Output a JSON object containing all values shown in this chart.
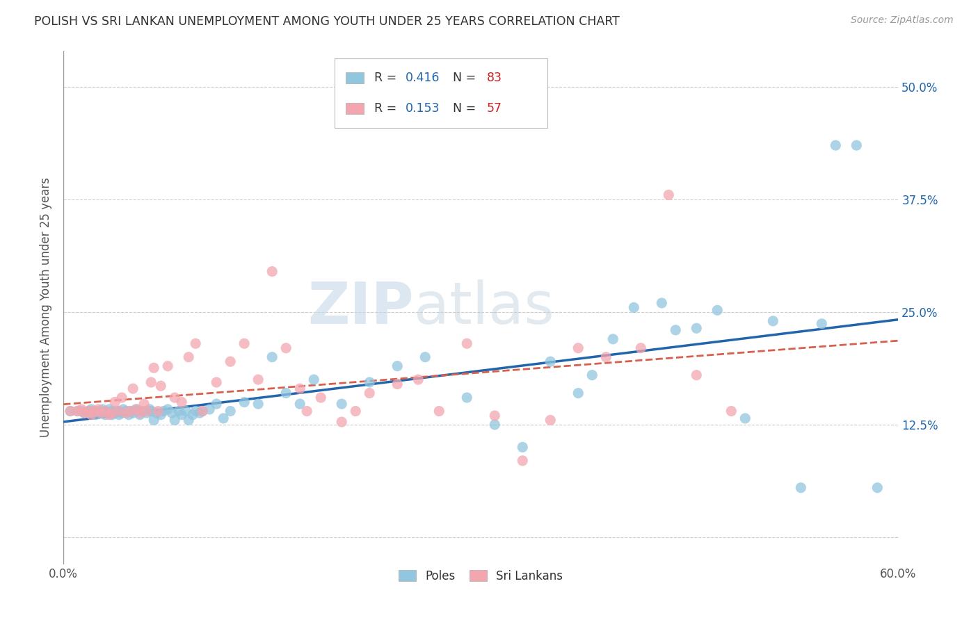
{
  "title": "POLISH VS SRI LANKAN UNEMPLOYMENT AMONG YOUTH UNDER 25 YEARS CORRELATION CHART",
  "source": "Source: ZipAtlas.com",
  "ylabel": "Unemployment Among Youth under 25 years",
  "xlim": [
    0.0,
    0.6
  ],
  "ylim": [
    -0.03,
    0.54
  ],
  "yticks": [
    0.0,
    0.125,
    0.25,
    0.375,
    0.5
  ],
  "ytick_labels": [
    "",
    "12.5%",
    "25.0%",
    "37.5%",
    "50.0%"
  ],
  "xticks": [
    0.0,
    0.1,
    0.2,
    0.3,
    0.4,
    0.5,
    0.6
  ],
  "xtick_labels": [
    "0.0%",
    "",
    "",
    "",
    "",
    "",
    "60.0%"
  ],
  "poles_R": 0.416,
  "poles_N": 83,
  "srilankans_R": 0.153,
  "srilankans_N": 57,
  "poles_color": "#92c5de",
  "srilankans_color": "#f4a6b0",
  "poles_line_color": "#2166ac",
  "srilankans_line_color": "#d6604d",
  "background_color": "#ffffff",
  "watermark_zip": "ZIP",
  "watermark_atlas": "atlas",
  "poles_x": [
    0.005,
    0.01,
    0.013,
    0.015,
    0.018,
    0.02,
    0.02,
    0.022,
    0.023,
    0.025,
    0.027,
    0.028,
    0.03,
    0.03,
    0.032,
    0.033,
    0.035,
    0.035,
    0.037,
    0.038,
    0.04,
    0.04,
    0.042,
    0.043,
    0.045,
    0.047,
    0.048,
    0.05,
    0.052,
    0.053,
    0.055,
    0.057,
    0.06,
    0.062,
    0.063,
    0.065,
    0.067,
    0.07,
    0.072,
    0.075,
    0.078,
    0.08,
    0.083,
    0.085,
    0.088,
    0.09,
    0.093,
    0.095,
    0.098,
    0.1,
    0.105,
    0.11,
    0.115,
    0.12,
    0.13,
    0.14,
    0.15,
    0.16,
    0.17,
    0.18,
    0.2,
    0.22,
    0.24,
    0.26,
    0.29,
    0.31,
    0.33,
    0.35,
    0.37,
    0.38,
    0.395,
    0.41,
    0.43,
    0.44,
    0.455,
    0.47,
    0.49,
    0.51,
    0.53,
    0.545,
    0.555,
    0.57,
    0.585
  ],
  "poles_y": [
    0.14,
    0.14,
    0.14,
    0.138,
    0.14,
    0.138,
    0.142,
    0.14,
    0.136,
    0.14,
    0.138,
    0.142,
    0.136,
    0.14,
    0.138,
    0.142,
    0.136,
    0.14,
    0.138,
    0.14,
    0.136,
    0.14,
    0.138,
    0.142,
    0.14,
    0.136,
    0.14,
    0.138,
    0.142,
    0.14,
    0.136,
    0.14,
    0.138,
    0.142,
    0.14,
    0.13,
    0.138,
    0.136,
    0.14,
    0.142,
    0.138,
    0.13,
    0.14,
    0.136,
    0.14,
    0.13,
    0.136,
    0.14,
    0.138,
    0.14,
    0.142,
    0.148,
    0.132,
    0.14,
    0.15,
    0.148,
    0.2,
    0.16,
    0.148,
    0.175,
    0.148,
    0.172,
    0.19,
    0.2,
    0.155,
    0.125,
    0.1,
    0.195,
    0.16,
    0.18,
    0.22,
    0.255,
    0.26,
    0.23,
    0.232,
    0.252,
    0.132,
    0.24,
    0.055,
    0.237,
    0.435,
    0.435,
    0.055
  ],
  "srilankans_x": [
    0.005,
    0.01,
    0.013,
    0.015,
    0.018,
    0.02,
    0.022,
    0.025,
    0.027,
    0.03,
    0.033,
    0.035,
    0.037,
    0.04,
    0.042,
    0.045,
    0.048,
    0.05,
    0.053,
    0.055,
    0.058,
    0.06,
    0.063,
    0.065,
    0.068,
    0.07,
    0.075,
    0.08,
    0.085,
    0.09,
    0.095,
    0.1,
    0.11,
    0.12,
    0.13,
    0.14,
    0.15,
    0.16,
    0.17,
    0.175,
    0.185,
    0.2,
    0.21,
    0.22,
    0.24,
    0.255,
    0.27,
    0.29,
    0.31,
    0.33,
    0.35,
    0.37,
    0.39,
    0.415,
    0.435,
    0.455,
    0.48
  ],
  "srilankans_y": [
    0.14,
    0.14,
    0.142,
    0.138,
    0.14,
    0.136,
    0.14,
    0.142,
    0.138,
    0.14,
    0.136,
    0.138,
    0.15,
    0.14,
    0.155,
    0.138,
    0.14,
    0.165,
    0.142,
    0.138,
    0.148,
    0.14,
    0.172,
    0.188,
    0.14,
    0.168,
    0.19,
    0.155,
    0.15,
    0.2,
    0.215,
    0.14,
    0.172,
    0.195,
    0.215,
    0.175,
    0.295,
    0.21,
    0.165,
    0.14,
    0.155,
    0.128,
    0.14,
    0.16,
    0.17,
    0.175,
    0.14,
    0.215,
    0.135,
    0.085,
    0.13,
    0.21,
    0.2,
    0.21,
    0.38,
    0.18,
    0.14
  ],
  "poles_line_x": [
    0.0,
    0.6
  ],
  "poles_line_y": [
    0.098,
    0.232
  ],
  "sri_line_x": [
    0.0,
    0.6
  ],
  "sri_line_y": [
    0.14,
    0.195
  ]
}
